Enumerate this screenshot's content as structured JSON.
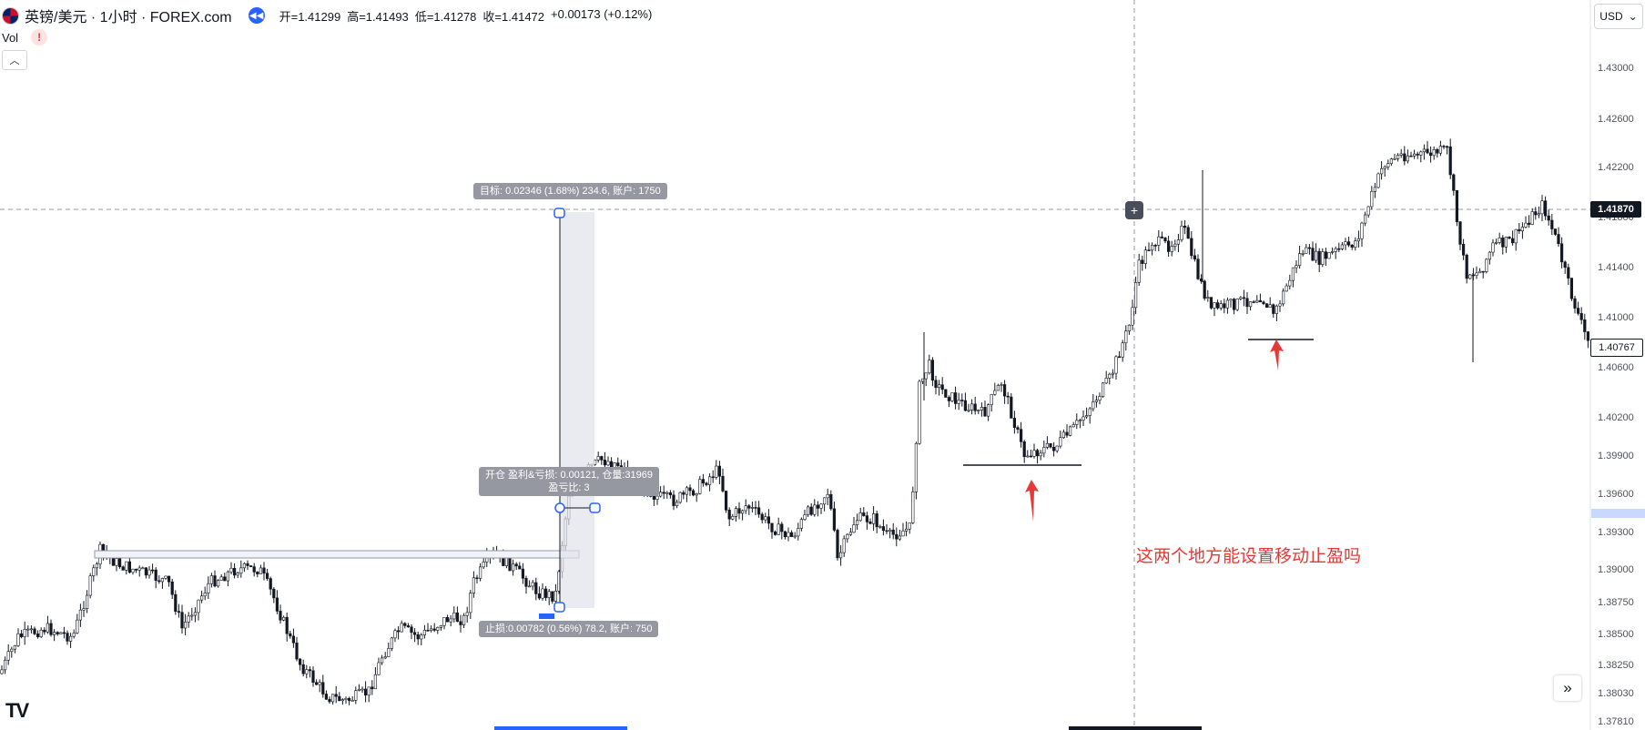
{
  "header": {
    "symbol": "英镑/美元 · 1小时 · FOREX.com",
    "ohlc": [
      {
        "label": "开",
        "value": "1.41299"
      },
      {
        "label": "高",
        "value": "1.41493"
      },
      {
        "label": "低",
        "value": "1.41278"
      },
      {
        "label": "收",
        "value": "1.41472"
      }
    ],
    "change": "+0.00173 (+0.12%)"
  },
  "indicators": {
    "vol_label": "Vol",
    "warning_glyph": "!"
  },
  "currency_select": {
    "value": "USD"
  },
  "price_axis": {
    "ticks": [
      "1.43000",
      "1.42600",
      "1.42200",
      "1.41800",
      "1.41400",
      "1.41000",
      "1.40600",
      "1.40200",
      "1.39900",
      "1.39600",
      "1.39300",
      "1.39000",
      "1.38750",
      "1.38500",
      "1.38250",
      "1.38030",
      "1.37810"
    ],
    "crosshair_price": "1.41870",
    "last_price": "1.40767"
  },
  "position_tool": {
    "target_label": "目标: 0.02346 (1.68%) 234.6, 账户: 1750",
    "open_label_line1": "开仓 盈利&亏损: 0.00121, 仓量:31969",
    "open_label_line2": "盈亏比: 3",
    "stop_label": "止损:0.00782 (0.56%) 78.2, 账户: 750"
  },
  "annotation": {
    "text": "这两个地方能设置移动止盈吗"
  },
  "icons": {
    "flag": "gbp-usd-flag-icon",
    "replay": "replay-icon",
    "collapse": "chevron-up-icon",
    "chevron": "chevron-down-icon",
    "scroll": "double-chevron-right-icon",
    "plus": "plus-icon",
    "logo": "tradingview-logo-icon"
  },
  "colors": {
    "accent": "#2962ff",
    "annotation": "#e53935",
    "candle": "#131722"
  }
}
